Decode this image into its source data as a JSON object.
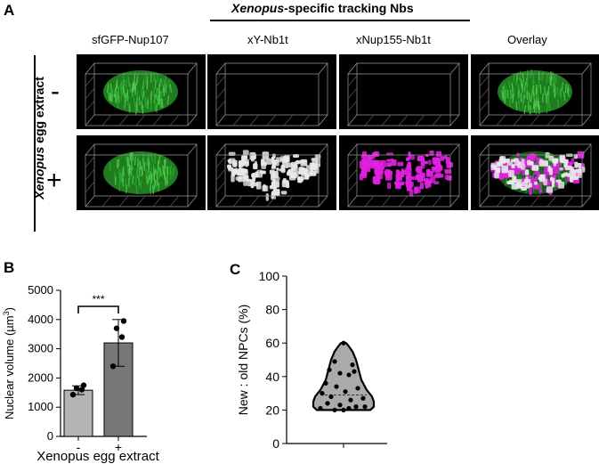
{
  "panel_a": {
    "letter": "A",
    "group_header": "Xenopus-specific tracking Nbs",
    "group_header_italic": "Xenopus",
    "group_header_rest": "-specific tracking Nbs",
    "columns": [
      "sfGFP-Nup107",
      "xY-Nb1t",
      "xNup155-Nb1t",
      "Overlay"
    ],
    "row_axis_label_italic": "Xenopus",
    "row_axis_label_rest": " egg extract",
    "rows": [
      {
        "sign": "-",
        "tiles": [
          "green-nucleus",
          "empty",
          "empty",
          "green-nucleus"
        ]
      },
      {
        "sign": "+",
        "tiles": [
          "green-nucleus",
          "white-new-npcs",
          "magenta-new-npcs",
          "overlay-white-magenta"
        ]
      }
    ],
    "colors": {
      "green": "#2bb02b",
      "magenta": "#e020e0",
      "white": "#e8e8e8"
    }
  },
  "panel_b": {
    "letter": "B",
    "chart_data": {
      "type": "bar",
      "categories": [
        "-",
        "+"
      ],
      "values": [
        1580,
        3200
      ],
      "error": [
        150,
        800
      ],
      "points": [
        [
          1430,
          1600,
          1650,
          1750
        ],
        [
          2400,
          3400,
          3700,
          3950
        ]
      ],
      "xlabel": "Xenopus egg extract",
      "ylabel": "Nuclear volume (µm³)",
      "ylabel_main": "Nuclear volume (µm",
      "ylabel_sup": "3",
      "ylabel_close": ")",
      "ylim": [
        0,
        5000
      ],
      "yticks": [
        0,
        1000,
        2000,
        3000,
        4000,
        5000
      ],
      "significance": "***",
      "bar_colors": [
        "#b4b4b4",
        "#777777"
      ]
    }
  },
  "panel_c": {
    "letter": "C",
    "chart_data": {
      "type": "violin",
      "ylabel": "New : old NPCs (%)",
      "ylim": [
        0,
        100
      ],
      "yticks": [
        0,
        20,
        40,
        60,
        80,
        100
      ],
      "median": 29,
      "points": [
        60,
        49,
        47,
        44,
        43,
        42,
        41,
        36,
        34,
        33,
        31,
        30,
        28,
        27,
        26,
        24,
        23,
        22,
        22,
        21,
        21,
        20,
        20
      ],
      "fill": "#aaaaaa"
    }
  }
}
